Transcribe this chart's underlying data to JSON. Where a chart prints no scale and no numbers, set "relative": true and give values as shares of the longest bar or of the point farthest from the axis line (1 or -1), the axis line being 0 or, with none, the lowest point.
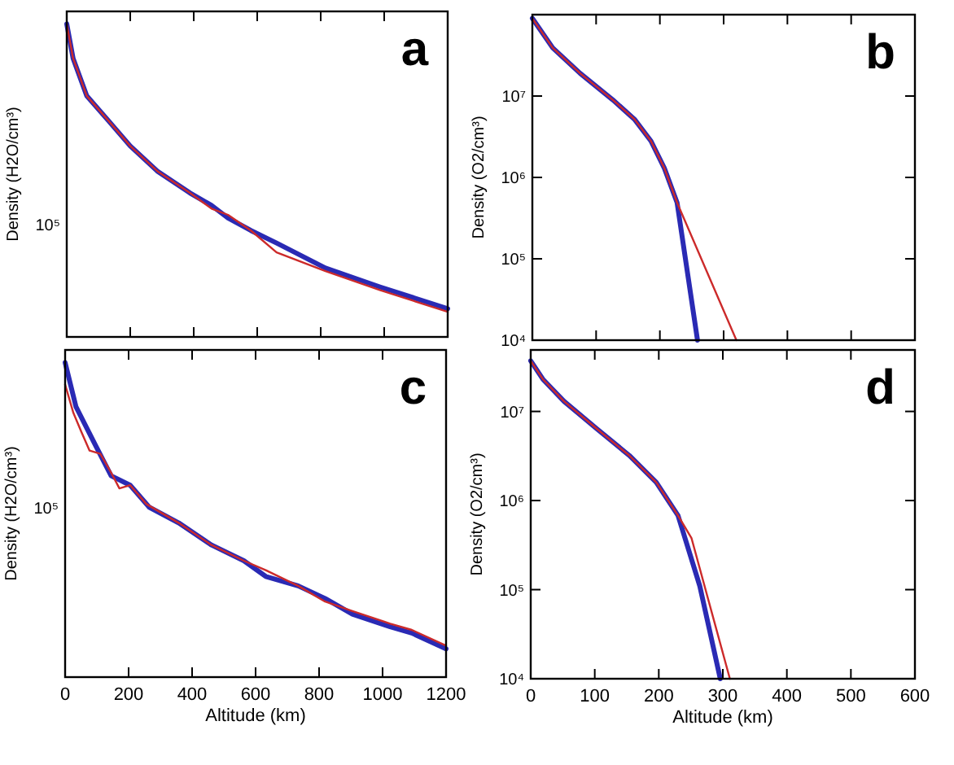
{
  "chart_data": [
    {
      "type": "line",
      "ylabel": "Density (H2O/cm³)",
      "annotations": [
        "a",
        "10⁵"
      ],
      "relative": true,
      "tick_labels": false,
      "xlim": [
        0,
        1200
      ],
      "xticks": [
        0,
        200,
        400,
        600,
        800,
        1000,
        1200
      ],
      "series": [
        {
          "color": "#2a2ab4",
          "x": [
            0,
            20,
            63,
            132,
            200,
            285,
            388,
            456,
            508,
            580,
            661,
            815,
            986,
            1200
          ],
          "values": [
            1,
            0.89,
            0.77,
            0.69,
            0.61,
            0.53,
            0.46,
            0.42,
            0.38,
            0.34,
            0.3,
            0.22,
            0.16,
            0.09
          ]
        },
        {
          "color": "#cc2a2a",
          "x": [
            0,
            20,
            63,
            132,
            200,
            285,
            388,
            456,
            508,
            580,
            661,
            815,
            986,
            1200
          ],
          "values": [
            1,
            0.89,
            0.77,
            0.69,
            0.61,
            0.53,
            0.46,
            0.41,
            0.39,
            0.34,
            0.27,
            0.21,
            0.15,
            0.08
          ]
        }
      ]
    },
    {
      "type": "line",
      "ylabel": "Density (O2/cm³)",
      "annotations": [
        "b"
      ],
      "log": "y",
      "tick_labels": "y",
      "xlim": [
        0,
        600
      ],
      "ylim": [
        10000,
        100000000
      ],
      "xticks": [
        0,
        100,
        200,
        300,
        400,
        500,
        600
      ],
      "yticks": [
        {
          "value": 10000,
          "label": "10⁴"
        },
        {
          "value": 100000,
          "label": "10⁵"
        },
        {
          "value": 1000000,
          "label": "10⁶"
        },
        {
          "value": 10000000,
          "label": "10⁷"
        }
      ],
      "series": [
        {
          "color": "#2a2ab4",
          "x": [
            0,
            32,
            75,
            126,
            160,
            186,
            207,
            227,
            259
          ],
          "values": [
            90000000,
            39000000,
            19000000,
            9000000,
            5200000,
            2800000,
            1300000,
            490000,
            10000
          ]
        },
        {
          "color": "#cc2a2a",
          "x": [
            0,
            32,
            75,
            126,
            160,
            186,
            207,
            227,
            320
          ],
          "values": [
            90000000,
            39000000,
            19000000,
            9000000,
            5200000,
            2800000,
            1300000,
            490000,
            10000
          ]
        }
      ]
    },
    {
      "type": "line",
      "xlabel": "Altitude (km)",
      "ylabel": "Density (H2O/cm³)",
      "annotations": [
        "c",
        "10⁵"
      ],
      "relative": true,
      "tick_labels": "x",
      "xlim": [
        0,
        1200
      ],
      "xticks": [
        0,
        200,
        400,
        600,
        800,
        1000,
        1200
      ],
      "series": [
        {
          "color": "#2a2ab4",
          "x": [
            0,
            34,
            94,
            145,
            205,
            265,
            358,
            461,
            563,
            632,
            734,
            819,
            905,
            1024,
            1092,
            1200
          ],
          "values": [
            1,
            0.86,
            0.74,
            0.64,
            0.61,
            0.54,
            0.49,
            0.42,
            0.37,
            0.32,
            0.29,
            0.25,
            0.2,
            0.16,
            0.14,
            0.09
          ]
        },
        {
          "color": "#cc2a2a",
          "x": [
            0,
            26,
            51,
            77,
            111,
            145,
            171,
            205,
            256,
            358,
            461,
            563,
            632,
            734,
            819,
            905,
            1024,
            1092,
            1200
          ],
          "values": [
            0.93,
            0.84,
            0.78,
            0.72,
            0.71,
            0.65,
            0.6,
            0.61,
            0.55,
            0.49,
            0.42,
            0.37,
            0.34,
            0.29,
            0.24,
            0.21,
            0.17,
            0.15,
            0.1
          ]
        }
      ]
    },
    {
      "type": "line",
      "xlabel": "Altitude (km)",
      "ylabel": "Density (O2/cm³)",
      "annotations": [
        "d"
      ],
      "log": "y",
      "xlim": [
        0,
        600
      ],
      "ylim": [
        10000,
        49000000
      ],
      "xticks": [
        0,
        100,
        200,
        300,
        400,
        500,
        600
      ],
      "yticks": [
        {
          "value": 10000,
          "label": "10⁴"
        },
        {
          "value": 100000,
          "label": "10⁵"
        },
        {
          "value": 1000000,
          "label": "10⁶"
        },
        {
          "value": 10000000,
          "label": "10⁷"
        }
      ],
      "series": [
        {
          "color": "#2a2ab4",
          "x": [
            0,
            19,
            52,
            103,
            154,
            196,
            230,
            264,
            296
          ],
          "values": [
            37000000,
            23000000,
            13000000,
            6400000,
            3200000,
            1600000,
            680000,
            110000,
            10000
          ]
        },
        {
          "color": "#cc2a2a",
          "x": [
            0,
            19,
            52,
            103,
            154,
            196,
            230,
            251,
            311
          ],
          "values": [
            37000000,
            23000000,
            13000000,
            6400000,
            3200000,
            1600000,
            680000,
            380000,
            10000
          ]
        }
      ]
    }
  ]
}
